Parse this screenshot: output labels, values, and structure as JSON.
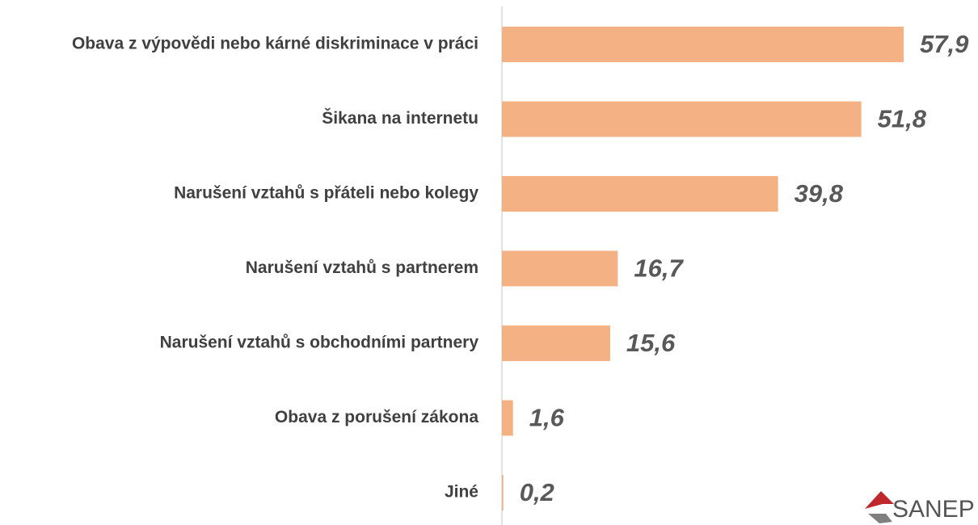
{
  "chart_data": {
    "type": "bar",
    "orientation": "horizontal",
    "categories": [
      "Obava z výpovědi nebo kárné diskriminace v práci",
      "Šikana na internetu",
      "Narušení vztahů s přáteli nebo kolegy",
      "Narušení vztahů s partnerem",
      "Narušení vztahů s obchodními partnery",
      "Obava z porušení zákona",
      "Jiné"
    ],
    "values": [
      57.9,
      51.8,
      39.8,
      16.7,
      15.6,
      1.6,
      0.2
    ],
    "value_labels": [
      "57,9",
      "51,8",
      "39,8",
      "16,7",
      "15,6",
      "1,6",
      "0,2"
    ],
    "color": "#f4b183"
  },
  "logo": "SANEP"
}
